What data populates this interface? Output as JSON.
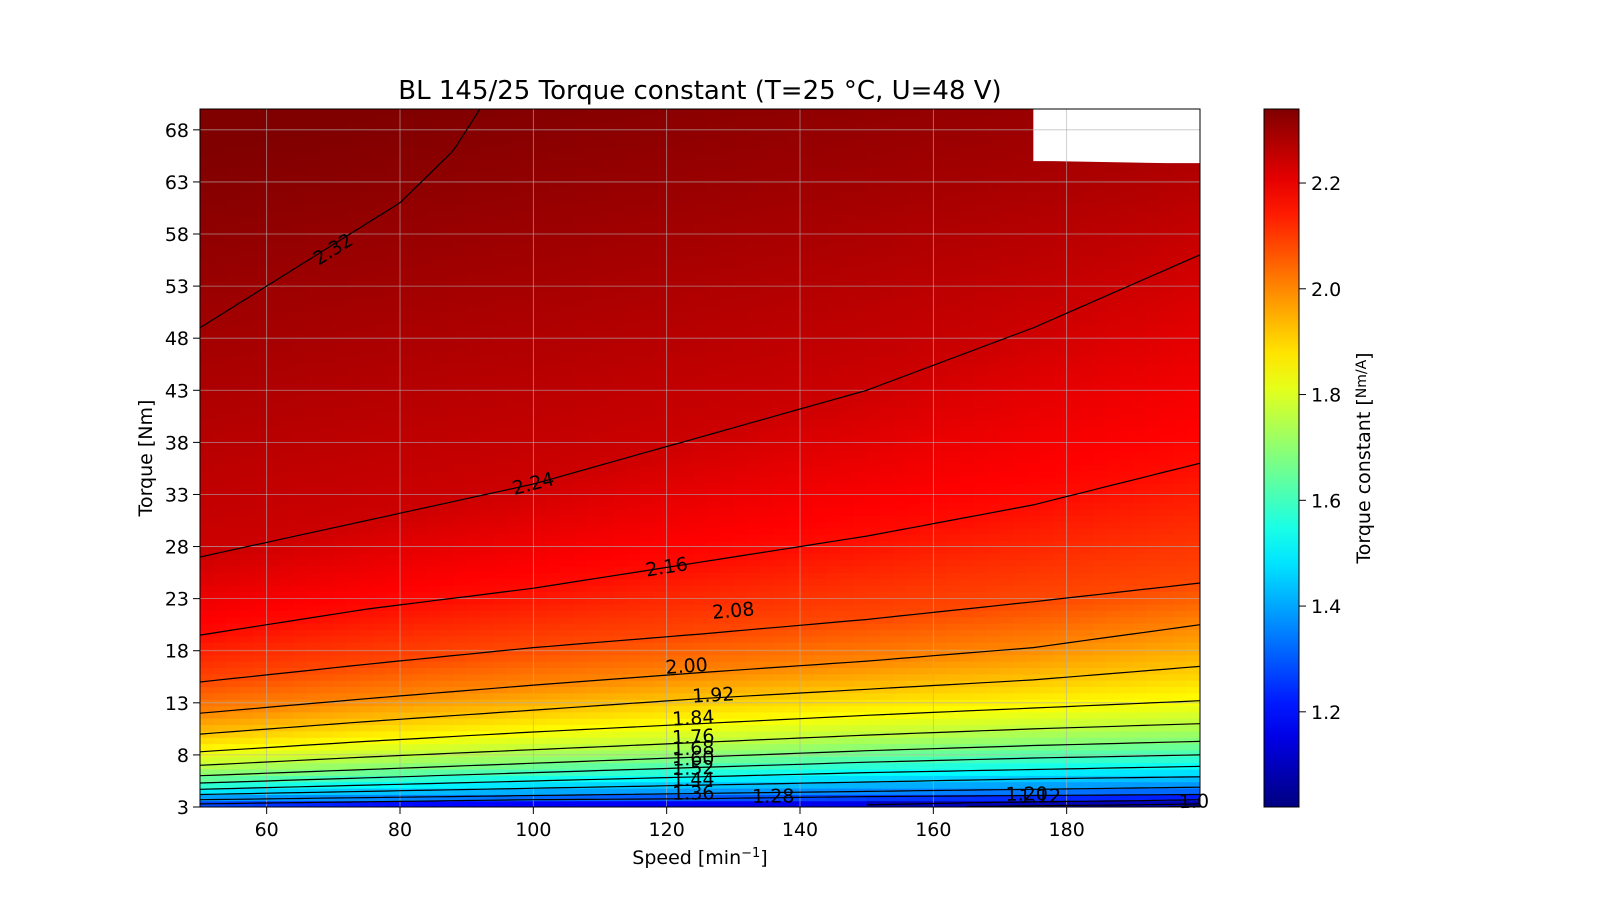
{
  "chart_data": {
    "type": "heatmap",
    "title": "BL 145/25 Torque constant (T=25 °C, U=48 V)",
    "xlabel": "Speed  [min⁻¹]",
    "ylabel": "Torque [Nm]",
    "colorbar_label": "Torque constant [Nm/A]",
    "colormap": "jet",
    "xlim": [
      50,
      200
    ],
    "ylim": [
      3,
      70
    ],
    "clim": [
      1.02,
      2.34
    ],
    "x_ticks": [
      60,
      80,
      100,
      120,
      140,
      160,
      180
    ],
    "y_ticks": [
      3,
      8,
      13,
      18,
      23,
      28,
      33,
      38,
      43,
      48,
      53,
      58,
      63,
      68
    ],
    "colorbar_ticks": [
      1.2,
      1.4,
      1.6,
      1.8,
      2.0,
      2.2
    ],
    "grid": true,
    "contours": [
      {
        "level": "2.32",
        "x": [
          50,
          60,
          70,
          80,
          88,
          92
        ],
        "y": [
          49,
          53,
          57,
          61,
          66,
          70
        ],
        "label_at": [
          70,
          56.5
        ]
      },
      {
        "level": "2.24",
        "x": [
          50,
          75,
          100,
          125,
          150,
          175,
          200
        ],
        "y": [
          27,
          30.5,
          34,
          38.5,
          43,
          49,
          56
        ],
        "label_at": [
          100,
          34
        ]
      },
      {
        "level": "2.16",
        "x": [
          50,
          75,
          100,
          125,
          150,
          175,
          200
        ],
        "y": [
          19.5,
          22,
          24,
          26.5,
          29,
          32,
          36
        ],
        "label_at": [
          120,
          26
        ]
      },
      {
        "level": "2.08",
        "x": [
          50,
          75,
          100,
          125,
          150,
          175,
          200
        ],
        "y": [
          15,
          16.7,
          18.3,
          19.6,
          21,
          22.7,
          24.5
        ],
        "label_at": [
          130,
          21.8
        ]
      },
      {
        "level": "2.00",
        "x": [
          50,
          75,
          100,
          125,
          150,
          175,
          200
        ],
        "y": [
          12,
          13.4,
          14.7,
          15.9,
          17,
          18.3,
          20.5
        ],
        "label_at": [
          123,
          16.5
        ]
      },
      {
        "level": "1.92",
        "x": [
          50,
          75,
          100,
          125,
          150,
          175,
          200
        ],
        "y": [
          10,
          11.2,
          12.3,
          13.4,
          14.3,
          15.2,
          16.5
        ],
        "label_at": [
          127,
          13.7
        ]
      },
      {
        "level": "1.84",
        "x": [
          50,
          75,
          100,
          125,
          150,
          175,
          200
        ],
        "y": [
          8.3,
          9.3,
          10.2,
          11,
          11.8,
          12.5,
          13.2
        ],
        "label_at": [
          124,
          11.5
        ]
      },
      {
        "level": "1.76",
        "x": [
          50,
          75,
          100,
          125,
          150,
          175,
          200
        ],
        "y": [
          7,
          7.8,
          8.5,
          9.2,
          9.9,
          10.5,
          11
        ],
        "label_at": [
          124,
          9.7
        ]
      },
      {
        "level": "1.68",
        "x": [
          50,
          75,
          100,
          125,
          150,
          175,
          200
        ],
        "y": [
          6,
          6.6,
          7.2,
          7.8,
          8.4,
          8.9,
          9.3
        ],
        "label_at": [
          124,
          8.6
        ]
      },
      {
        "level": "1.60",
        "x": [
          50,
          75,
          100,
          125,
          150,
          175,
          200
        ],
        "y": [
          5.3,
          5.8,
          6.3,
          6.8,
          7.3,
          7.7,
          8
        ],
        "label_at": [
          124,
          7.6
        ]
      },
      {
        "level": "1.52",
        "x": [
          50,
          75,
          100,
          125,
          150,
          175,
          200
        ],
        "y": [
          4.7,
          5.1,
          5.5,
          5.9,
          6.3,
          6.6,
          6.9
        ],
        "label_at": [
          124,
          6.7
        ]
      },
      {
        "level": "1.44",
        "x": [
          50,
          75,
          100,
          125,
          150,
          175,
          200
        ],
        "y": [
          4.2,
          4.5,
          4.8,
          5.1,
          5.4,
          5.7,
          5.9
        ],
        "label_at": [
          124,
          5.6
        ]
      },
      {
        "level": "1.36",
        "x": [
          50,
          75,
          100,
          125,
          150,
          175,
          200
        ],
        "y": [
          3.7,
          3.9,
          4.1,
          4.3,
          4.5,
          4.7,
          4.9
        ],
        "label_at": [
          124,
          4.3
        ]
      },
      {
        "level": "1.28",
        "x": [
          50,
          75,
          100,
          125,
          150,
          175,
          200
        ],
        "y": [
          3.3,
          3.5,
          3.7,
          3.8,
          4,
          4.1,
          4.2
        ],
        "label_at": [
          136,
          4
        ]
      },
      {
        "level": "1.20",
        "x": [
          150,
          165,
          175,
          190,
          200
        ],
        "y": [
          3.2,
          3.4,
          3.5,
          3.6,
          3.7
        ],
        "label_at": [
          174,
          4.2
        ]
      },
      {
        "level": "1.12",
        "x": [
          165,
          180,
          190,
          200
        ],
        "y": [
          3.05,
          3.15,
          3.2,
          3.3
        ],
        "label_at": [
          176,
          4
        ]
      },
      {
        "level": "1.0",
        "x": [
          195,
          200
        ],
        "y": [
          3.02,
          3.08
        ],
        "label_at": [
          200,
          3.5
        ]
      }
    ],
    "no_data_region": {
      "x": [
        175,
        178,
        195,
        200
      ],
      "y_from": [
        65,
        65,
        64.8,
        64.8
      ],
      "y_to": 70
    }
  }
}
